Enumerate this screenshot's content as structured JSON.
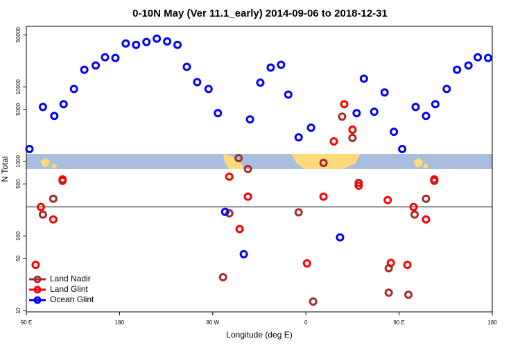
{
  "chart_data": {
    "type": "scatter",
    "title": "0-10N May (Ver 11.1_early)   2014-09-06 to 2018-12-31",
    "x_label": "Longitude (deg E)",
    "y_label": "N Total",
    "xlim": [
      90,
      540
    ],
    "ylim": [
      9.6,
      65000
    ],
    "log_y": true,
    "xticks": [
      {
        "value": 90,
        "label": "90 E"
      },
      180,
      {
        "value": 270,
        "label": "90 W"
      },
      {
        "value": 360,
        "label": "0"
      },
      {
        "value": 450,
        "label": "90 E"
      },
      {
        "value": 540,
        "label": "180"
      }
    ],
    "yticks": [
      10,
      50,
      100,
      500,
      1000,
      5000,
      10000,
      50000
    ],
    "hline": 245,
    "legend": "bottom-left",
    "series": [
      {
        "name": "Land Nadir",
        "color": "#a52a2a",
        "x": [
          106,
          116,
          125,
          280,
          286,
          295,
          304,
          353,
          367,
          377,
          395,
          405,
          411,
          440,
          440,
          459,
          465,
          476,
          484
        ],
        "values": [
          194,
          316,
          551,
          28,
          202,
          1110,
          791,
          208,
          13.2,
          958,
          4000,
          2070,
          516,
          37,
          17.4,
          16.3,
          194,
          316,
          551
        ]
      },
      {
        "name": "Land Glint",
        "color": "#ff0000",
        "x": [
          99,
          104,
          116,
          125,
          286,
          296,
          304,
          361,
          377,
          387,
          397,
          405,
          411,
          439,
          442,
          458,
          464,
          476,
          484
        ],
        "values": [
          41,
          245,
          167,
          574,
          625,
          124,
          337,
          43,
          337,
          1860,
          5870,
          2670,
          474,
          303,
          43.5,
          41,
          245,
          167,
          574
        ]
      },
      {
        "name": "Ocean Glint",
        "color": "#0000ff",
        "x": [
          93,
          106,
          117,
          126,
          136,
          146,
          157,
          166,
          176,
          186,
          196,
          206,
          216,
          226,
          236,
          245,
          255,
          266,
          275,
          282,
          300,
          306,
          316,
          326,
          336,
          343,
          353,
          365,
          393,
          409,
          416,
          426,
          436,
          445,
          453,
          466,
          476,
          485,
          496,
          506,
          517,
          526,
          536
        ],
        "values": [
          1470,
          5380,
          4080,
          5870,
          9380,
          17000,
          19400,
          25000,
          24500,
          38300,
          36700,
          40000,
          44500,
          40800,
          36700,
          18600,
          11600,
          9380,
          4450,
          211,
          57,
          3670,
          11400,
          18200,
          19800,
          7900,
          2110,
          2840,
          96,
          4450,
          12900,
          4640,
          8430,
          2500,
          1470,
          5380,
          4080,
          5870,
          9380,
          17000,
          19400,
          25000,
          24500
        ]
      }
    ]
  }
}
